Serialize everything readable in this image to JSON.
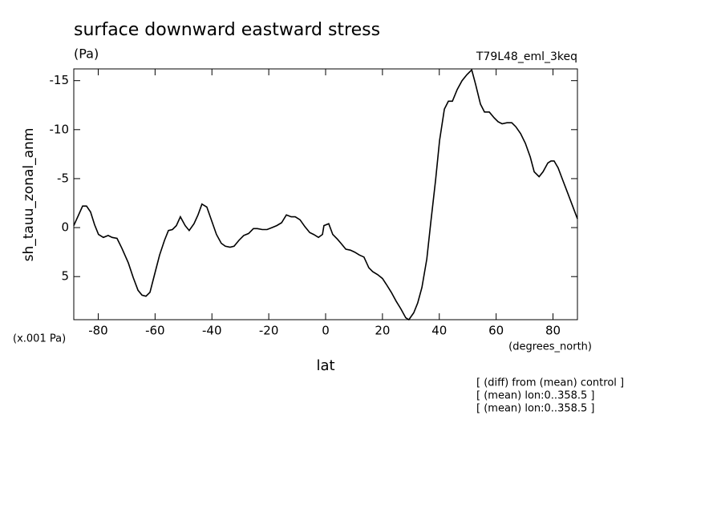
{
  "chart_data": {
    "type": "line",
    "title": "surface downward eastward stress",
    "units": "(Pa)",
    "run_label": "T79L48_eml_3keq",
    "y_label": "sh_tauu_zonal_anm",
    "y_units": "(x.001 Pa)",
    "x_units": "(degrees_north)",
    "x_label": "lat",
    "notes": [
      "[ (diff) from (mean) control ]",
      "[ (mean) lon:0..358.5 ]",
      "[ (mean) lon:0..358.5 ]"
    ],
    "xlim": [
      -88.6,
      88.6
    ],
    "ylim": [
      9.4,
      -16.2
    ],
    "xticks": [
      -80,
      -60,
      -40,
      -20,
      0,
      20,
      40,
      60,
      80
    ],
    "yticks": [
      5,
      0,
      -5,
      -10,
      -15
    ],
    "color": "#000000",
    "x": [
      -88.6,
      -85.5,
      -84.1,
      -82.7,
      -81.3,
      -79.9,
      -78.2,
      -76.5,
      -75.1,
      -73.4,
      -71.7,
      -69.4,
      -67.7,
      -66.0,
      -64.6,
      -63.2,
      -61.8,
      -60.1,
      -58.4,
      -56.7,
      -55.3,
      -53.9,
      -52.5,
      -51.1,
      -49.4,
      -48.0,
      -46.3,
      -44.9,
      -43.5,
      -41.8,
      -40.1,
      -38.4,
      -36.7,
      -35.3,
      -33.6,
      -32.2,
      -30.5,
      -28.8,
      -27.1,
      -25.4,
      -24.0,
      -22.3,
      -20.6,
      -18.9,
      -17.2,
      -15.5,
      -13.8,
      -12.1,
      -10.7,
      -9.0,
      -7.3,
      -5.6,
      -4.2,
      -2.5,
      -1.1,
      -0.6,
      1.1,
      2.5,
      4.2,
      5.4,
      7.1,
      8.7,
      10.2,
      11.9,
      13.5,
      15.2,
      16.6,
      18.3,
      20.0,
      21.4,
      23.1,
      24.8,
      26.5,
      28.2,
      29.3,
      31.0,
      32.4,
      33.9,
      35.6,
      37.0,
      38.7,
      40.1,
      41.8,
      43.2,
      44.6,
      46.3,
      48.0,
      49.7,
      51.4,
      52.8,
      54.5,
      55.9,
      57.6,
      59.3,
      60.7,
      62.1,
      63.8,
      65.5,
      66.9,
      68.6,
      70.3,
      72.0,
      73.4,
      75.1,
      76.5,
      78.2,
      79.3,
      80.4,
      81.8,
      83.5,
      85.2,
      86.9,
      88.6
    ],
    "values": [
      -0.2,
      -2.2,
      -2.2,
      -1.6,
      -0.3,
      0.7,
      1.0,
      0.8,
      1.0,
      1.1,
      2.1,
      3.6,
      5.1,
      6.4,
      6.9,
      7.0,
      6.6,
      4.7,
      2.8,
      1.3,
      0.3,
      0.2,
      -0.2,
      -1.1,
      -0.2,
      0.3,
      -0.4,
      -1.3,
      -2.4,
      -2.1,
      -0.7,
      0.7,
      1.6,
      1.9,
      2.0,
      1.9,
      1.3,
      0.8,
      0.6,
      0.1,
      0.1,
      0.2,
      0.2,
      0.0,
      -0.2,
      -0.5,
      -1.3,
      -1.1,
      -1.1,
      -0.8,
      -0.1,
      0.5,
      0.7,
      1.0,
      0.7,
      -0.2,
      -0.4,
      0.7,
      1.2,
      1.6,
      2.2,
      2.3,
      2.5,
      2.8,
      3.0,
      4.1,
      4.5,
      4.8,
      5.2,
      5.8,
      6.6,
      7.5,
      8.3,
      9.2,
      9.4,
      8.7,
      7.7,
      6.1,
      3.2,
      -0.5,
      -4.9,
      -8.9,
      -12.1,
      -12.9,
      -12.9,
      -14.1,
      -15.0,
      -15.6,
      -16.1,
      -14.6,
      -12.6,
      -11.8,
      -11.8,
      -11.2,
      -10.8,
      -10.6,
      -10.7,
      -10.7,
      -10.3,
      -9.6,
      -8.6,
      -7.2,
      -5.7,
      -5.2,
      -5.7,
      -6.6,
      -6.8,
      -6.8,
      -6.1,
      -4.8,
      -3.5,
      -2.2,
      -0.9
    ]
  }
}
